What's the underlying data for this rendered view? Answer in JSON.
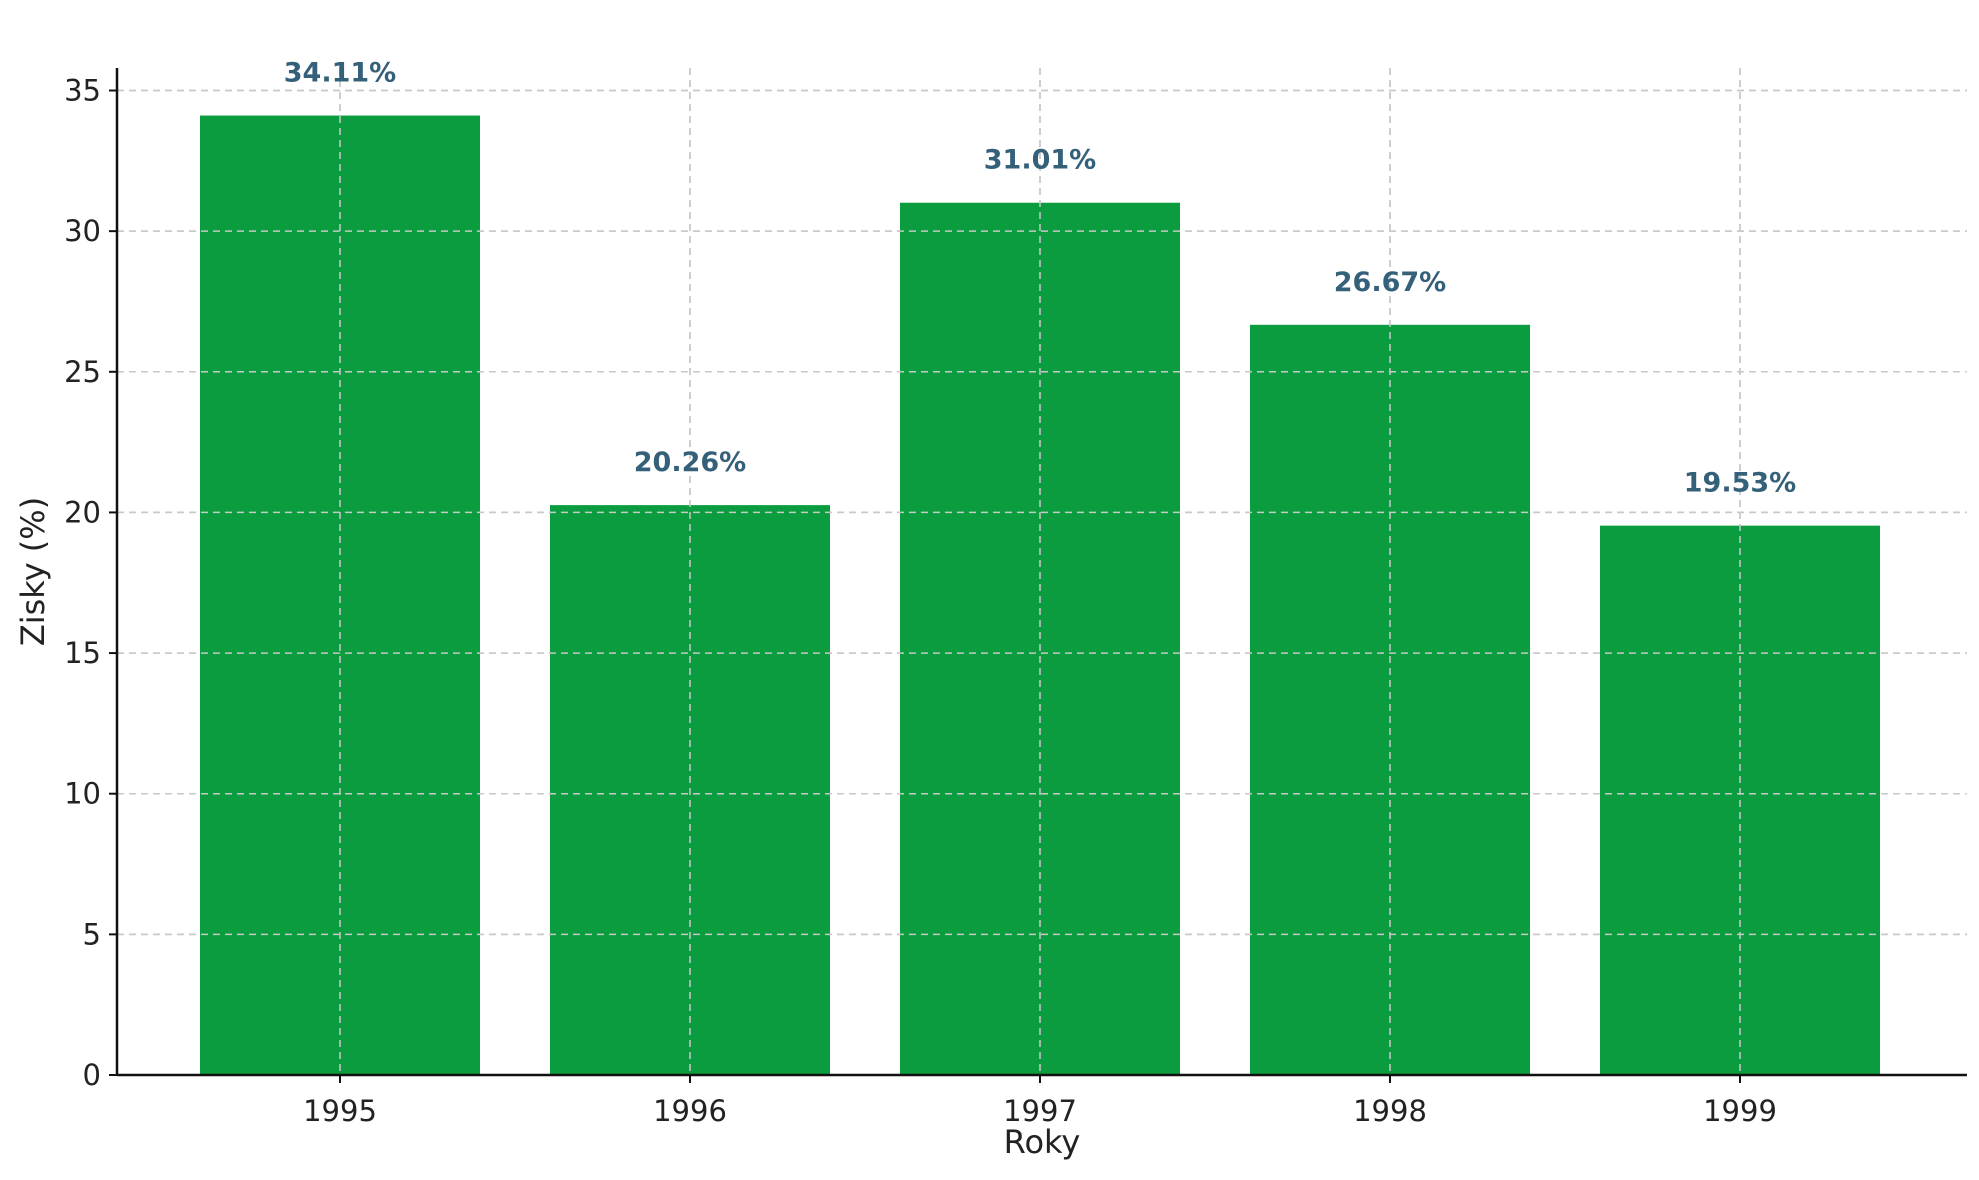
{
  "chart_data": {
    "type": "bar",
    "title": "",
    "xlabel": "Roky",
    "ylabel": "Zisky (%)",
    "categories": [
      "1995",
      "1996",
      "1997",
      "1998",
      "1999"
    ],
    "values": [
      34.11,
      20.26,
      31.01,
      26.67,
      19.53
    ],
    "data_labels": [
      "34.11%",
      "20.26%",
      "31.01%",
      "26.67%",
      "19.53%"
    ],
    "ylim": [
      0,
      35.8
    ],
    "yticks": [
      0,
      5,
      10,
      15,
      20,
      25,
      30,
      35
    ],
    "ytick_labels": [
      "0",
      "5",
      "10",
      "15",
      "20",
      "25",
      "30",
      "35"
    ],
    "grid": true,
    "legend": false,
    "colors": {
      "bar": "#0a9c3e",
      "data_label": "#34607a",
      "grid": "#c8c8c8",
      "axis": "#111111"
    }
  }
}
